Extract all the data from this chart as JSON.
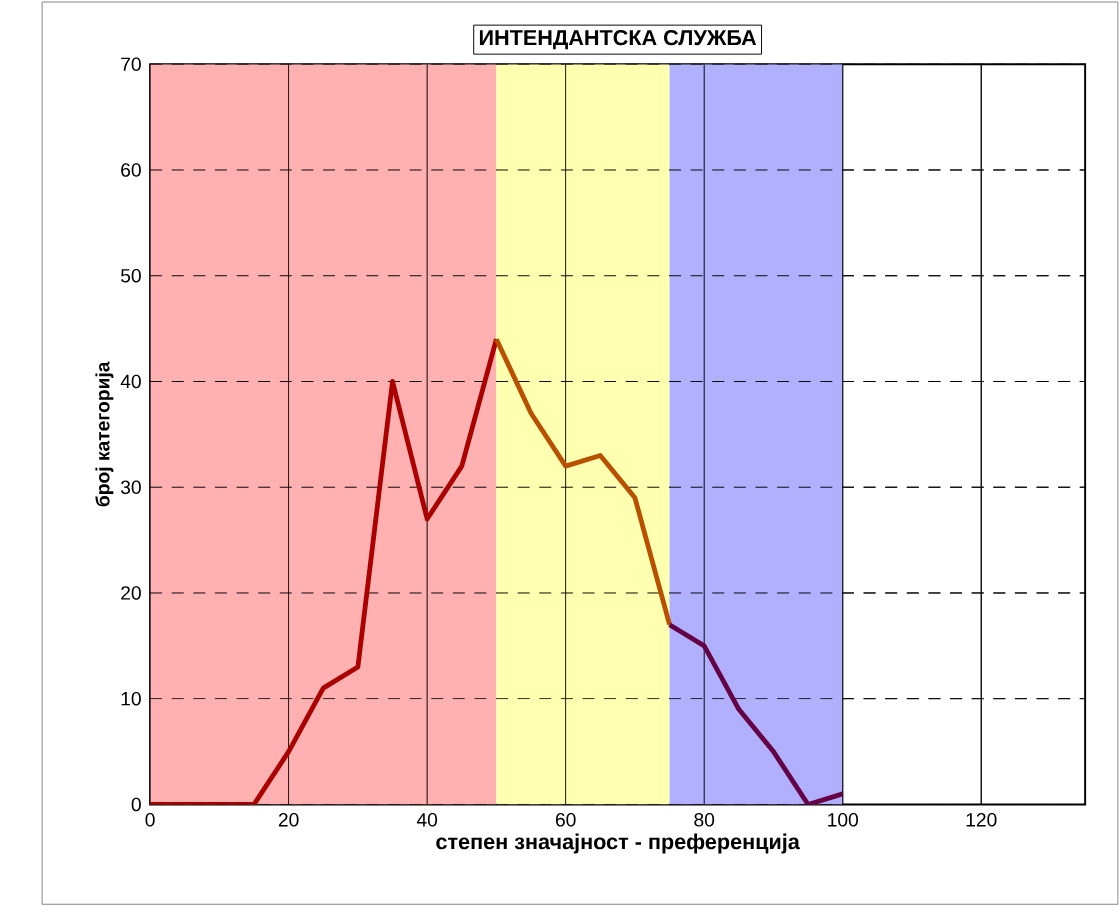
{
  "chart_data": {
    "type": "line",
    "title": "ИНТЕНДАНТСКА СЛУЖБА",
    "xlabel": "степен значајност - преференција",
    "ylabel": "број категорија",
    "xlim": [
      0,
      135
    ],
    "ylim": [
      0,
      70
    ],
    "xticks": [
      0,
      20,
      40,
      60,
      80,
      100,
      120
    ],
    "yticks": [
      0,
      10,
      20,
      30,
      40,
      50,
      60,
      70
    ],
    "grid": true,
    "line_style": "solid",
    "marker": "none",
    "bands": [
      {
        "axis": "x",
        "from": 0,
        "to": 50,
        "color": "#ffb0b0"
      },
      {
        "axis": "x",
        "from": 50,
        "to": 75,
        "color": "#ffffb0"
      },
      {
        "axis": "x",
        "from": 75,
        "to": 100,
        "color": "#b0b0ff"
      }
    ],
    "series": [
      {
        "color": "#aa0000",
        "x": [
          0,
          5,
          10,
          15,
          20,
          25,
          30,
          35,
          40,
          45,
          50
        ],
        "values": [
          0,
          0,
          0,
          0,
          5,
          11,
          13,
          40,
          27,
          32,
          44
        ]
      },
      {
        "color": "#b85000",
        "x": [
          50,
          55,
          60,
          65,
          70,
          75
        ],
        "values": [
          44,
          37,
          32,
          33,
          29,
          17
        ]
      },
      {
        "color": "#660044",
        "x": [
          75,
          80,
          85,
          90,
          95,
          100
        ],
        "values": [
          17,
          15,
          9,
          5,
          0,
          1
        ]
      }
    ]
  }
}
